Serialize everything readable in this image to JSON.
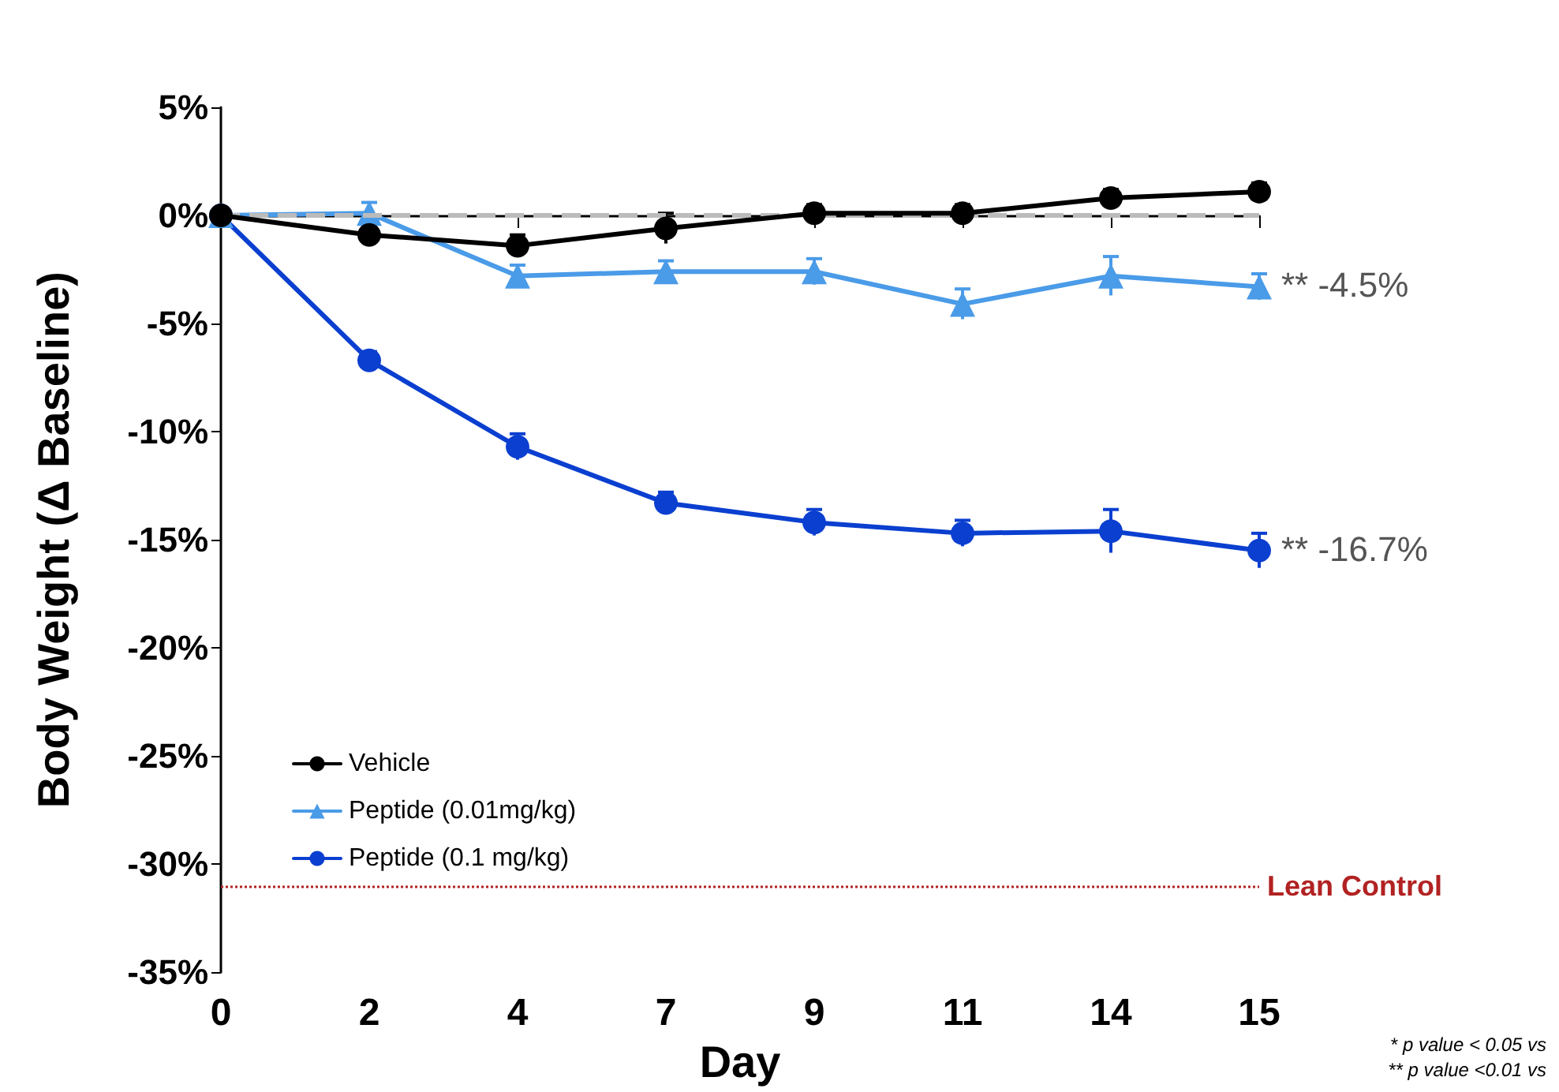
{
  "chart_data": {
    "type": "line",
    "xlabel": "Day",
    "ylabel": "Body Weight (Δ Baseline)",
    "categories": [
      "0",
      "2",
      "4",
      "7",
      "9",
      "11",
      "14",
      "15"
    ],
    "series": [
      {
        "name": "Vehicle",
        "color": "#000000",
        "marker": "circle",
        "values": [
          0,
          -0.9,
          -1.4,
          -0.6,
          0.1,
          0.1,
          0.8,
          1.1
        ],
        "errors": [
          null,
          0.4,
          0.5,
          0.7,
          0.4,
          0.4,
          0.4,
          0.4
        ]
      },
      {
        "name": "Peptide (0.01mg/kg)",
        "color": "#4a9be8",
        "marker": "triangle",
        "values": [
          0,
          0.1,
          -2.8,
          -2.6,
          -2.6,
          -4.1,
          -2.8,
          -3.3
        ],
        "errors": [
          null,
          0.5,
          0.5,
          0.5,
          0.6,
          0.7,
          0.9,
          0.6
        ]
      },
      {
        "name": "Peptide (0.1 mg/kg)",
        "color": "#0a3fd0",
        "marker": "circle",
        "values": [
          0,
          -6.7,
          -10.7,
          -13.3,
          -14.2,
          -14.7,
          -14.6,
          -15.5
        ],
        "errors": [
          null,
          0.4,
          0.6,
          0.5,
          0.6,
          0.6,
          1.0,
          0.8
        ]
      }
    ],
    "ylim": [
      -35,
      5
    ],
    "yticks": [
      {
        "value": -35,
        "label": "-35%"
      },
      {
        "value": -30,
        "label": "-30%"
      },
      {
        "value": -25,
        "label": "-25%"
      },
      {
        "value": -20,
        "label": "-20%"
      },
      {
        "value": -15,
        "label": "-15%"
      },
      {
        "value": -10,
        "label": "-10%"
      },
      {
        "value": -5,
        "label": "-5%"
      },
      {
        "value": 0,
        "label": "0%"
      },
      {
        "value": 5,
        "label": "5%"
      }
    ],
    "ref_lines": [
      {
        "axis": "y",
        "value": 0,
        "label": null,
        "color": "#bbbbbb",
        "line_style": "dashed"
      },
      {
        "axis": "y",
        "value": -31,
        "label": "Lean Control",
        "color": "#b22222",
        "line_style": "dotted"
      }
    ],
    "annotations": [
      {
        "text": "** -4.5%",
        "x": "15",
        "y": -3.3
      },
      {
        "text": "** -16.7%",
        "x": "15",
        "y": -15.5
      },
      "* p value < 0.05 vs",
      "** p value <0.01 vs"
    ],
    "legend": "bottom left",
    "grid": false,
    "line_style": "solid"
  }
}
